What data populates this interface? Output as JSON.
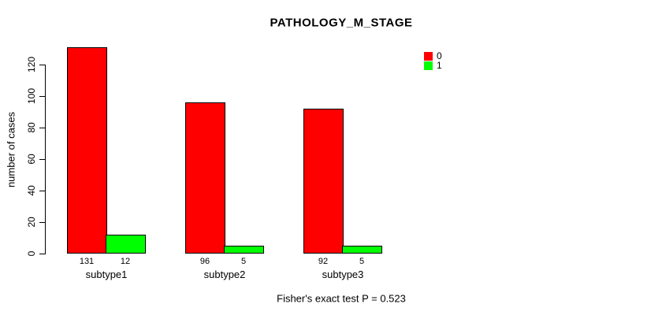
{
  "chart_data": {
    "type": "bar",
    "title": "PATHOLOGY_M_STAGE",
    "xlabel": "",
    "ylabel": "number of cases",
    "categories": [
      "subtype1",
      "subtype2",
      "subtype3"
    ],
    "series": [
      {
        "name": "0",
        "color": "#FF0000",
        "values": [
          131,
          96,
          92
        ]
      },
      {
        "name": "1",
        "color": "#00FF00",
        "values": [
          12,
          5,
          5
        ]
      }
    ],
    "bar_value_labels": [
      [
        131,
        12
      ],
      [
        96,
        5
      ],
      [
        92,
        5
      ]
    ],
    "yticks": [
      0,
      20,
      40,
      60,
      80,
      100,
      120
    ],
    "ylim": [
      0,
      131
    ],
    "grid": false,
    "legend_position": "topright",
    "annotation": "Fisher's exact test P = 0.523"
  },
  "legend": {
    "items": [
      {
        "label": "0",
        "color": "#FF0000"
      },
      {
        "label": "1",
        "color": "#00FF00"
      }
    ]
  },
  "colors": {
    "series0": "#FF0000",
    "series1": "#00FF00",
    "axis": "#000000",
    "background": "#ffffff"
  }
}
